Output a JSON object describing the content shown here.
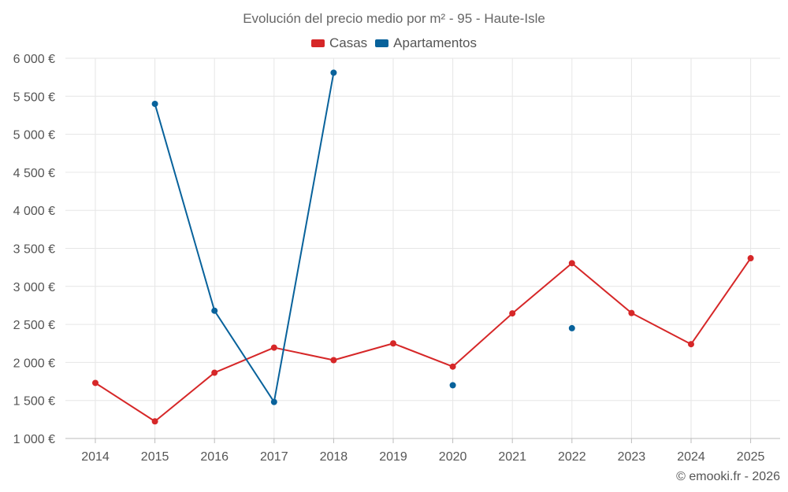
{
  "chart_data": {
    "type": "line",
    "title": "Evolución del precio medio por m² - 95 - Haute-Isle",
    "xlabel": "",
    "ylabel": "",
    "categories": [
      "2014",
      "2015",
      "2016",
      "2017",
      "2018",
      "2019",
      "2020",
      "2021",
      "2022",
      "2023",
      "2024",
      "2025"
    ],
    "ylim": [
      1000,
      6000
    ],
    "yticks": [
      1000,
      1500,
      2000,
      2500,
      3000,
      3500,
      4000,
      4500,
      5000,
      5500,
      6000
    ],
    "ytick_labels": [
      "1 000 €",
      "1 500 €",
      "2 000 €",
      "2 500 €",
      "3 000 €",
      "3 500 €",
      "4 000 €",
      "4 500 €",
      "5 000 €",
      "5 500 €",
      "6 000 €"
    ],
    "grid": true,
    "legend_position": "top-center",
    "series": [
      {
        "name": "Casas",
        "color": "#d62728",
        "values": [
          1730,
          1225,
          1865,
          2195,
          2030,
          2250,
          1945,
          2645,
          3305,
          2650,
          2240,
          3370
        ]
      },
      {
        "name": "Apartamentos",
        "color": "#08629b",
        "values": [
          null,
          5400,
          2680,
          1480,
          5810,
          null,
          1700,
          null,
          2450,
          null,
          null,
          null
        ]
      }
    ]
  },
  "legend": {
    "casas": "Casas",
    "apartamentos": "Apartamentos"
  },
  "credit": "© emooki.fr - 2026"
}
